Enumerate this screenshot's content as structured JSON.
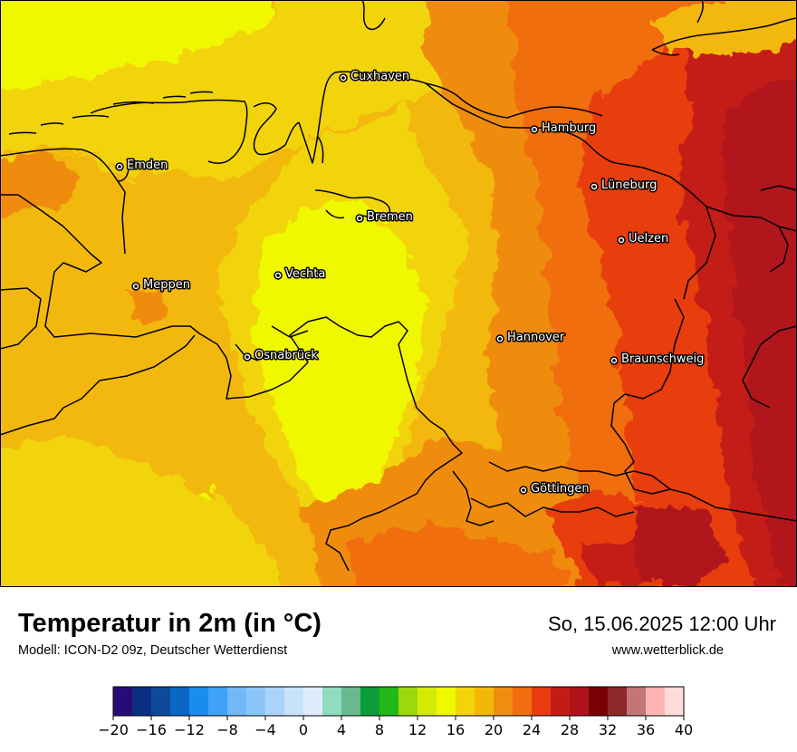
{
  "header": {
    "title": "Temperatur in 2m (in °C)",
    "model": "Modell: ICON-D2 09z, Deutscher Wetterdienst",
    "datetime": "So, 15.06.2025 12:00 Uhr",
    "website": "www.wetterblick.de"
  },
  "cities": [
    {
      "name": "Cuxhaven"
    },
    {
      "name": "Hamburg"
    },
    {
      "name": "Emden"
    },
    {
      "name": "Lüneburg"
    },
    {
      "name": "Bremen"
    },
    {
      "name": "Uelzen"
    },
    {
      "name": "Vechta"
    },
    {
      "name": "Meppen"
    },
    {
      "name": "Hannover"
    },
    {
      "name": "Osnabrück"
    },
    {
      "name": "Braunschweig"
    },
    {
      "name": "Göttingen"
    }
  ],
  "legend": {
    "unit": "°C",
    "ticks": [
      "−20",
      "−16",
      "−12",
      "−8",
      "−4",
      "0",
      "4",
      "8",
      "12",
      "16",
      "20",
      "24",
      "28",
      "32",
      "36",
      "40"
    ],
    "colors": [
      "#2a0a7a",
      "#0a2f80",
      "#0d4a9a",
      "#0a68c4",
      "#1a8cf0",
      "#3fa2f8",
      "#72b8f8",
      "#8cc6f8",
      "#aad4fa",
      "#c8e2fc",
      "#dcecfc",
      "#90dcc0",
      "#6ab890",
      "#0c9c38",
      "#22b818",
      "#9ed80c",
      "#d2ec06",
      "#f0f800",
      "#f2d408",
      "#f2b808",
      "#f08c10",
      "#f06e10",
      "#e83c10",
      "#c41c14",
      "#b0141a",
      "#7a0006",
      "#8c2a2a",
      "#c47676",
      "#ffb4b4",
      "#ffdcdc"
    ]
  }
}
